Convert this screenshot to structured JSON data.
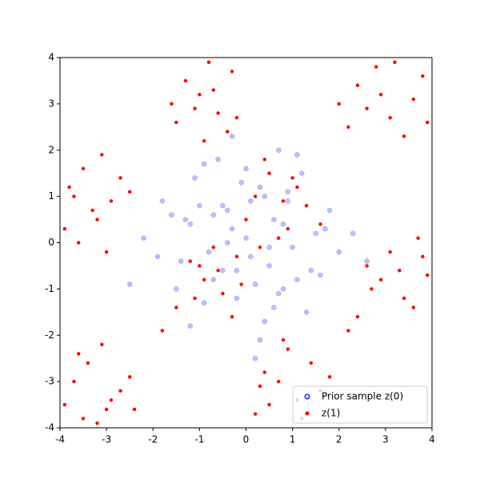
{
  "chart_data": {
    "type": "scatter",
    "xlim": [
      -4,
      4
    ],
    "ylim": [
      -4,
      4
    ],
    "xticks": [
      -4,
      -3,
      -2,
      -1,
      0,
      1,
      2,
      3,
      4
    ],
    "yticks": [
      -4,
      -3,
      -2,
      -1,
      0,
      1,
      2,
      3,
      4
    ],
    "legend": "lower right",
    "series": [
      {
        "name": "Prior sample z(0)",
        "color": "blue",
        "x": [
          0.1,
          -0.5,
          0.8,
          -1.2,
          0.3,
          1.5,
          -0.2,
          -0.9,
          0.6,
          -1.8,
          1.1,
          0.0,
          -0.4,
          0.9,
          -1.4,
          0.4,
          2.0,
          -0.7,
          0.2,
          -1.1,
          1.3,
          -0.3,
          0.7,
          -2.2,
          0.5,
          -0.6,
          1.8,
          -1.5,
          0.1,
          1.0,
          -0.8,
          0.3,
          -0.1,
          1.6,
          -1.3,
          0.8,
          -0.5,
          2.3,
          -1.9,
          0.4,
          -0.2,
          1.2,
          -1.0,
          0.6,
          -0.7,
          0.0,
          1.4,
          -1.6,
          0.9,
          -0.3,
          2.6,
          -2.5,
          0.2,
          1.7,
          -0.9,
          0.5,
          -1.2,
          1.1,
          -0.4,
          0.7
        ],
        "values": [
          -0.3,
          0.8,
          -1.0,
          0.4,
          1.2,
          0.2,
          -0.6,
          -1.3,
          0.5,
          0.9,
          -0.8,
          1.6,
          0.0,
          1.1,
          -0.4,
          -1.7,
          -0.2,
          0.6,
          -0.9,
          1.4,
          -1.5,
          0.3,
          2.0,
          0.1,
          -0.5,
          1.8,
          0.7,
          -1.0,
          0.9,
          -0.1,
          -0.2,
          -2.1,
          1.3,
          -0.7,
          0.5,
          0.4,
          -0.6,
          0.2,
          -0.3,
          1.0,
          -1.2,
          1.5,
          0.8,
          -1.4,
          -0.8,
          0.1,
          -0.6,
          0.6,
          0.9,
          2.3,
          -0.4,
          -0.9,
          -2.5,
          0.3,
          1.7,
          -0.1,
          -1.8,
          1.9,
          0.7,
          -1.1
        ]
      },
      {
        "name": "z(1)",
        "color": "red",
        "x": [
          -3.8,
          -3.2,
          -3.5,
          -2.9,
          -3.9,
          -3.1,
          -3.6,
          -2.7,
          -3.3,
          -3.7,
          -3.0,
          -2.5,
          -1.3,
          -0.6,
          -1.0,
          -0.3,
          -1.5,
          -0.8,
          -0.4,
          -1.1,
          -0.7,
          -1.6,
          -0.2,
          -0.9,
          2.4,
          3.1,
          2.8,
          3.6,
          2.2,
          3.4,
          2.9,
          3.8,
          2.6,
          3.2,
          3.9,
          2.0,
          2.6,
          3.4,
          2.9,
          3.8,
          2.4,
          3.1,
          3.6,
          2.7,
          3.9,
          2.2,
          3.3,
          3.7,
          -3.7,
          -3.0,
          -3.4,
          -2.7,
          -3.9,
          -3.2,
          -2.5,
          -3.6,
          -2.9,
          -3.5,
          -3.1,
          -2.4,
          0.4,
          1.1,
          0.7,
          1.4,
          0.2,
          0.9,
          1.6,
          0.5,
          1.2,
          0.8,
          0.3,
          1.8,
          0.2,
          0.9,
          0.5,
          1.3,
          0.0,
          0.7,
          1.1,
          0.4,
          1.6,
          0.8,
          0.3,
          1.0,
          -1.2,
          -0.5,
          -0.9,
          -0.2,
          -1.5,
          -0.7,
          -0.3,
          -1.1,
          -0.6,
          -1.8,
          -0.1,
          -1.0
        ],
        "values": [
          1.2,
          0.5,
          1.6,
          0.9,
          0.3,
          1.9,
          0.0,
          1.4,
          0.7,
          1.0,
          -0.2,
          1.1,
          3.5,
          2.8,
          3.2,
          3.7,
          2.6,
          3.9,
          2.4,
          2.9,
          3.3,
          3.0,
          2.7,
          2.2,
          3.4,
          2.7,
          3.8,
          3.1,
          2.5,
          2.3,
          3.2,
          3.6,
          2.9,
          3.9,
          2.6,
          3.0,
          -0.5,
          -1.2,
          -0.8,
          -0.3,
          -1.6,
          -0.2,
          -1.4,
          -1.0,
          -0.7,
          -1.9,
          -0.6,
          0.1,
          -3.0,
          -3.6,
          -2.6,
          -3.2,
          -3.5,
          -3.9,
          -2.9,
          -2.4,
          -3.4,
          -3.8,
          -2.2,
          -3.6,
          -2.8,
          -3.4,
          -3.0,
          -2.6,
          -3.7,
          -2.3,
          -3.2,
          -3.5,
          -3.8,
          -2.1,
          -3.1,
          -2.9,
          1.0,
          0.3,
          1.5,
          0.8,
          0.5,
          0.1,
          1.2,
          1.8,
          0.4,
          0.9,
          -0.1,
          1.4,
          -0.4,
          -1.1,
          -0.8,
          -0.3,
          -1.4,
          -0.1,
          -1.6,
          -1.2,
          -0.6,
          -1.9,
          -0.9,
          -0.5
        ]
      }
    ]
  }
}
